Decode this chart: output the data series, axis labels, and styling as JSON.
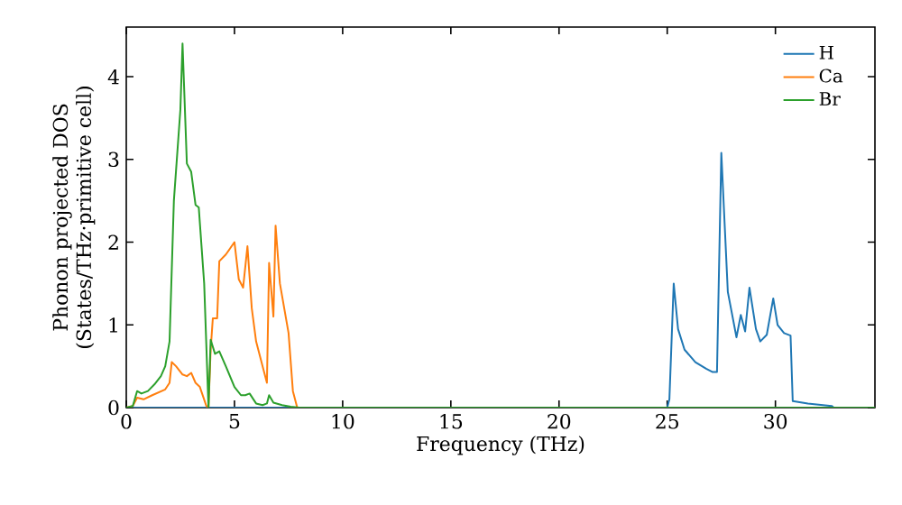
{
  "chart_data": {
    "type": "line",
    "xlabel": "Frequency (THz)",
    "ylabel": "Phonon projected DOS\n(States/THz·primitive cell)",
    "xlim": [
      0,
      34.6
    ],
    "ylim": [
      0,
      4.6
    ],
    "xticks": [
      0,
      5,
      10,
      15,
      20,
      25,
      30
    ],
    "yticks": [
      0,
      1,
      2,
      3,
      4
    ],
    "legend": "top right",
    "grid": false,
    "series": [
      {
        "name": "H",
        "color": "#1f77b4",
        "x": [
          0,
          25.0,
          25.1,
          25.3,
          25.5,
          25.8,
          26.3,
          26.8,
          27.1,
          27.3,
          27.5,
          27.8,
          28.2,
          28.4,
          28.6,
          28.8,
          29.1,
          29.3,
          29.6,
          29.9,
          30.1,
          30.4,
          30.7,
          30.8,
          31.5,
          32.6,
          32.7,
          34.6
        ],
        "values": [
          0,
          0,
          0.1,
          1.5,
          0.95,
          0.7,
          0.55,
          0.47,
          0.43,
          0.43,
          3.08,
          1.4,
          0.85,
          1.12,
          0.92,
          1.45,
          0.95,
          0.8,
          0.88,
          1.32,
          1.0,
          0.9,
          0.87,
          0.08,
          0.05,
          0.02,
          0,
          0
        ]
      },
      {
        "name": "Ca",
        "color": "#ff7f0e",
        "x": [
          0,
          0.3,
          0.5,
          0.8,
          1.2,
          1.8,
          2.0,
          2.1,
          2.3,
          2.6,
          2.8,
          3.0,
          3.2,
          3.4,
          3.7,
          3.8,
          3.9,
          4.0,
          4.2,
          4.3,
          4.6,
          5.0,
          5.2,
          5.4,
          5.6,
          5.8,
          6.0,
          6.3,
          6.5,
          6.6,
          6.8,
          6.9,
          7.1,
          7.5,
          7.7,
          7.9,
          34.6
        ],
        "values": [
          0,
          0.02,
          0.12,
          0.1,
          0.15,
          0.22,
          0.3,
          0.55,
          0.5,
          0.4,
          0.38,
          0.42,
          0.3,
          0.25,
          0.02,
          0,
          0.7,
          1.08,
          1.08,
          1.77,
          1.85,
          2.0,
          1.55,
          1.45,
          1.95,
          1.2,
          0.8,
          0.5,
          0.3,
          1.75,
          1.1,
          2.2,
          1.5,
          0.9,
          0.2,
          0,
          0
        ]
      },
      {
        "name": "Br",
        "color": "#2ca02c",
        "x": [
          0,
          0.3,
          0.5,
          0.7,
          1.0,
          1.3,
          1.6,
          1.8,
          2.0,
          2.2,
          2.5,
          2.6,
          2.8,
          3.0,
          3.2,
          3.35,
          3.6,
          3.8,
          3.9,
          4.1,
          4.3,
          4.6,
          5.0,
          5.3,
          5.5,
          5.7,
          6.0,
          6.3,
          6.5,
          6.6,
          6.8,
          7.2,
          7.6,
          8.0,
          34.6
        ],
        "values": [
          0,
          0.02,
          0.2,
          0.17,
          0.2,
          0.28,
          0.38,
          0.5,
          0.8,
          2.5,
          3.6,
          4.4,
          2.95,
          2.85,
          2.45,
          2.42,
          1.5,
          0,
          0.82,
          0.65,
          0.68,
          0.5,
          0.25,
          0.15,
          0.15,
          0.17,
          0.05,
          0.03,
          0.05,
          0.15,
          0.06,
          0.03,
          0.01,
          0,
          0
        ]
      }
    ]
  }
}
